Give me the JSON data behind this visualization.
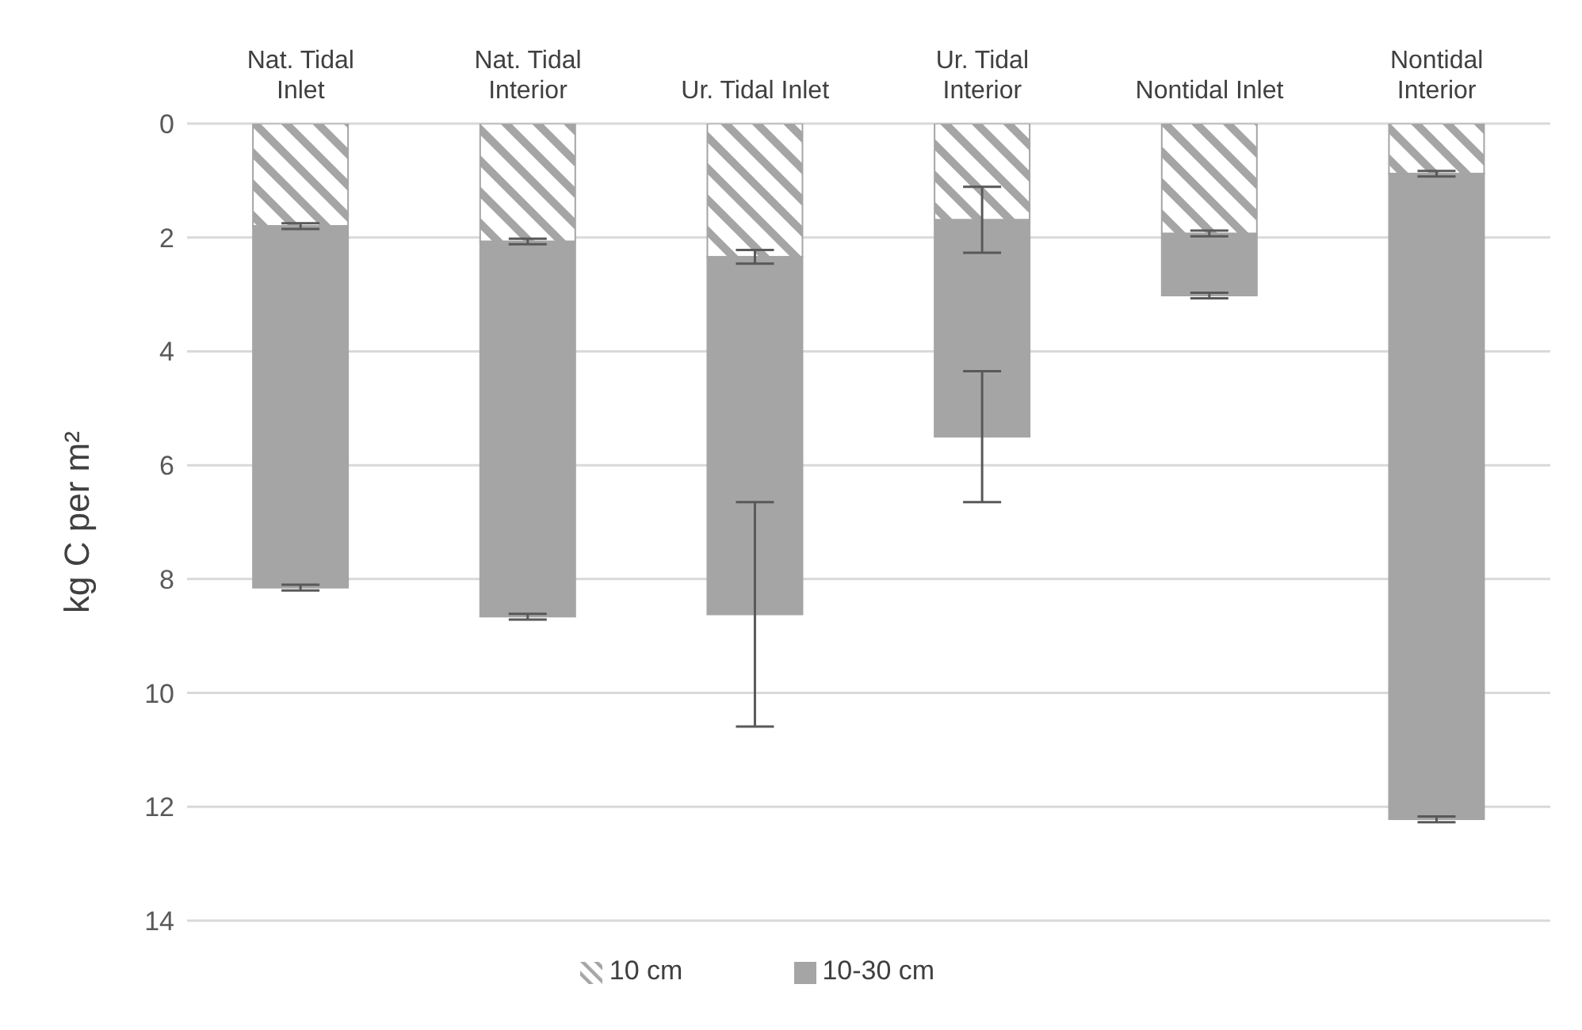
{
  "chart_data": {
    "type": "bar",
    "stacked": true,
    "ylabel": "kg C per m²",
    "categories": [
      "Nat. Tidal Inlet",
      "Nat. Tidal Interior",
      "Ur. Tidal Inlet",
      "Ur. Tidal Interior",
      "Nontidal Inlet",
      "Nontidal Interior"
    ],
    "series": [
      {
        "name": "10 cm",
        "color": "#a5a5a5",
        "values": [
          1.8,
          2.07,
          2.34,
          1.69,
          1.93,
          0.88
        ],
        "errors": [
          0.05,
          0.05,
          0.12,
          0.58,
          0.05,
          0.05
        ]
      },
      {
        "name": "10-30 cm",
        "color": "#a5a5a5",
        "values": [
          6.35,
          6.59,
          6.28,
          3.81,
          1.09,
          11.34
        ],
        "errors": [
          0.05,
          0.05,
          1.97,
          1.15,
          0.05,
          0.05
        ]
      }
    ],
    "ylim": [
      14,
      0
    ],
    "yticks": [
      0,
      2,
      4,
      6,
      8,
      10,
      12,
      14
    ],
    "grid": "y",
    "legend": "bottom"
  }
}
